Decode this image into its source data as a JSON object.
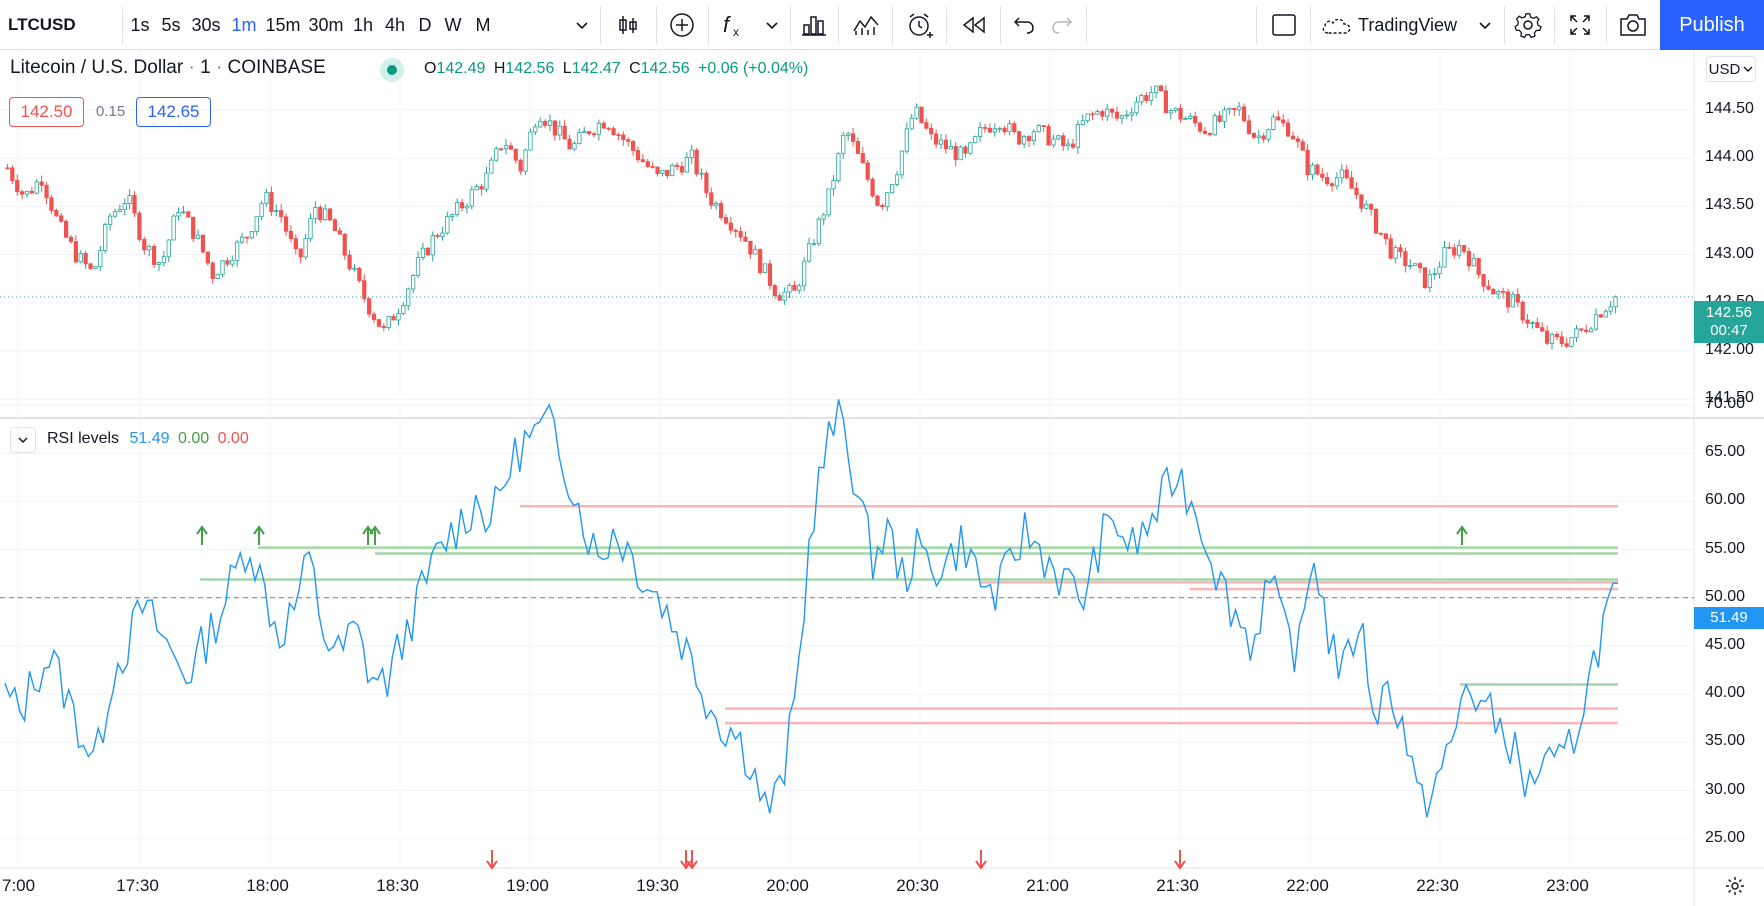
{
  "toolbar": {
    "symbol": "LTCUSD",
    "intervals": [
      "1s",
      "5s",
      "30s",
      "1m",
      "15m",
      "30m",
      "1h",
      "4h",
      "D",
      "W",
      "M"
    ],
    "active_interval": "1m",
    "layout_name": "TradingView",
    "publish_label": "Publish",
    "icons": [
      "chevron-down-icon",
      "candles-icon",
      "plus-circle-icon",
      "fx-icon",
      "chevron-down-icon",
      "bar-chart-icon",
      "indicator-templates-icon",
      "alarm-icon",
      "replay-icon",
      "undo-icon",
      "redo-icon",
      "square-icon",
      "cloud-icon",
      "chevron-down-icon",
      "gear-icon",
      "fullscreen-icon",
      "camera-icon"
    ]
  },
  "legend": {
    "title": "Litecoin / U.S. Dollar",
    "interval": "1",
    "exchange": "COINBASE",
    "open_label": "O",
    "open": "142.49",
    "high_label": "H",
    "high": "142.56",
    "low_label": "L",
    "low": "142.47",
    "close_label": "C",
    "close": "142.56",
    "change": "+0.06 (+0.04%)",
    "bid": "142.50",
    "spread": "0.15",
    "ask": "142.65"
  },
  "price_axis": {
    "currency": "USD",
    "ticks": [
      "144.50",
      "144.00",
      "143.50",
      "143.00",
      "142.50",
      "142.00",
      "141.50"
    ],
    "last_price": "142.56",
    "countdown": "00:47"
  },
  "rsi": {
    "name": "RSI levels",
    "value": "51.49",
    "v2": "0.00",
    "v3": "0.00",
    "ticks": [
      "70.00",
      "65.00",
      "60.00",
      "55.00",
      "50.00",
      "45.00",
      "40.00",
      "35.00",
      "30.00",
      "25.00"
    ],
    "last_value": "51.49"
  },
  "time_axis": {
    "ticks": [
      "7:00",
      "17:30",
      "18:00",
      "18:30",
      "19:00",
      "19:30",
      "20:00",
      "20:30",
      "21:00",
      "21:30",
      "22:00",
      "22:30",
      "23:00"
    ]
  },
  "colors": {
    "up": "#26a69a",
    "down": "#ef5350",
    "rsi_line": "#2196f3",
    "accent": "#2962ff"
  },
  "chart_data": [
    {
      "type": "candlestick",
      "title": "Litecoin / U.S. Dollar",
      "ylim": [
        141.5,
        144.8
      ],
      "x_range": [
        "16:55",
        "23:10"
      ],
      "close_series_approx": [
        143.9,
        143.6,
        143.8,
        143.3,
        143.0,
        142.8,
        143.4,
        143.6,
        143.1,
        142.9,
        143.5,
        143.2,
        142.8,
        143.0,
        143.2,
        143.6,
        143.4,
        142.9,
        143.5,
        143.3,
        142.9,
        142.5,
        142.2,
        142.5,
        142.9,
        143.2,
        143.4,
        143.6,
        143.8,
        144.2,
        143.9,
        144.5,
        144.3,
        144.1,
        144.3,
        144.4,
        144.2,
        144.0,
        143.8,
        143.9,
        144.0,
        143.6,
        143.4,
        143.2,
        142.9,
        142.6,
        142.6,
        143.1,
        143.6,
        144.3,
        143.9,
        143.5,
        143.9,
        144.5,
        144.2,
        144.1,
        144.0,
        144.3,
        144.4,
        144.2,
        144.3,
        144.2,
        144.1,
        144.4,
        144.5,
        144.4,
        144.6,
        144.7,
        144.5,
        144.4,
        144.3,
        144.4,
        144.5,
        144.2,
        144.4,
        144.3,
        143.9,
        143.8,
        143.8,
        143.6,
        143.3,
        143.0,
        142.9,
        142.7,
        143.0,
        143.1,
        142.8,
        142.6,
        142.5,
        142.3,
        142.1,
        142.1,
        142.2,
        142.4,
        142.56
      ]
    },
    {
      "type": "line",
      "title": "RSI levels",
      "ylim": [
        23,
        72
      ],
      "x_range": [
        "16:55",
        "23:10"
      ],
      "values": [
        40,
        38,
        42,
        44,
        40,
        36,
        33,
        42,
        45,
        49,
        47,
        44,
        42,
        45,
        48,
        52,
        56,
        51,
        46,
        49,
        54,
        46,
        44,
        47,
        42,
        41,
        45,
        49,
        53,
        56,
        58,
        60,
        58,
        63,
        66,
        67,
        68,
        63,
        58,
        54,
        57,
        55,
        52,
        50,
        47,
        44,
        40,
        37,
        36,
        33,
        28,
        30,
        40,
        58,
        66,
        69,
        61,
        54,
        57,
        52,
        55,
        53,
        54,
        56,
        52,
        50,
        53,
        57,
        55,
        53,
        51,
        50,
        56,
        58,
        55,
        57,
        60,
        63,
        60,
        56,
        51,
        48,
        45,
        52,
        47,
        44,
        55,
        46,
        42,
        48,
        38,
        41,
        36,
        28,
        31,
        34,
        41,
        39,
        37,
        35,
        30,
        33,
        32,
        35,
        41,
        47,
        51.49
      ],
      "levels_green": [
        55.2,
        54.6,
        51.9,
        41.0
      ],
      "levels_red": [
        59.5,
        51.6,
        50.9,
        38.5,
        37.0
      ],
      "reference_line": 50,
      "up_arrows_times": [
        "17:45",
        "17:58",
        "18:25",
        "18:25",
        "22:34"
      ],
      "down_arrows_times": [
        "18:47",
        "19:33",
        "19:33",
        "20:43",
        "21:29"
      ]
    }
  ]
}
